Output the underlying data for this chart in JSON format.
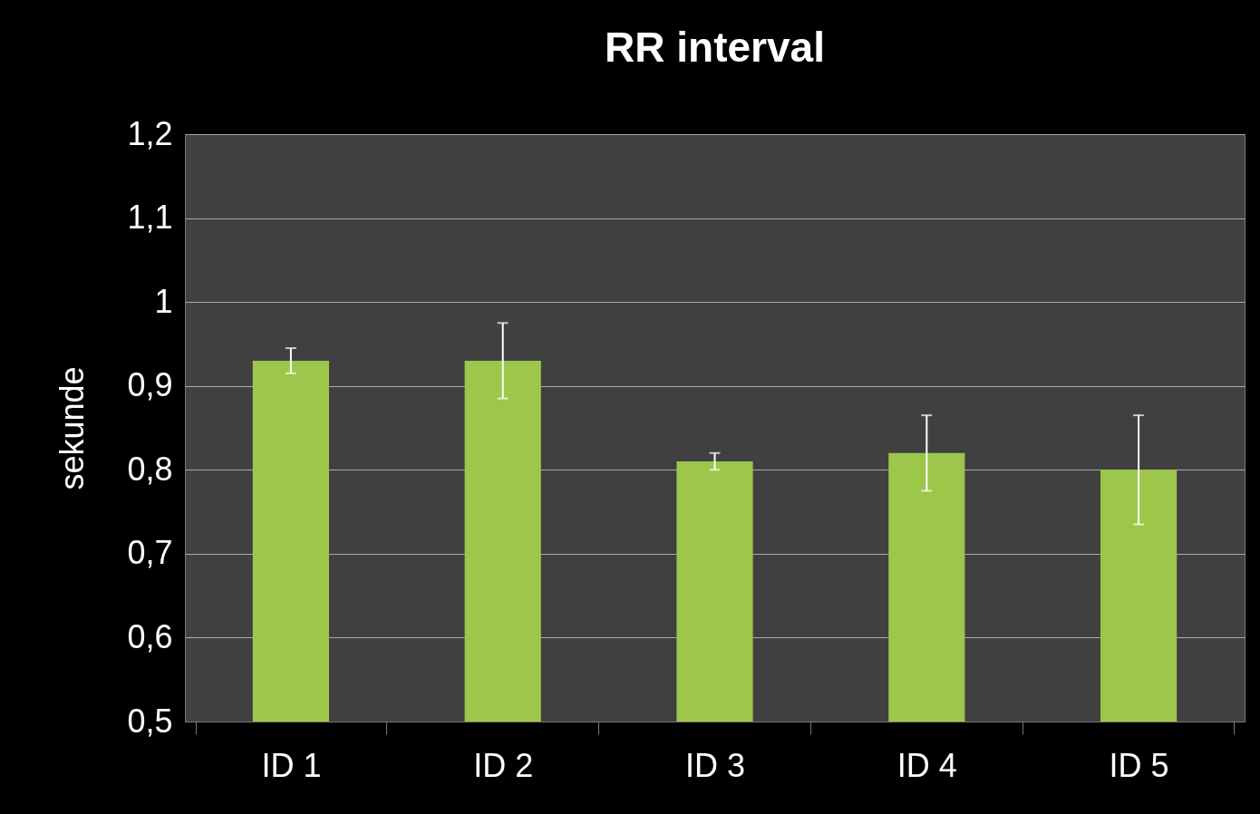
{
  "chart_data": {
    "type": "bar",
    "title": "RR interval",
    "ylabel": "sekunde",
    "categories": [
      "ID 1",
      "ID 2",
      "ID 3",
      "ID 4",
      "ID 5"
    ],
    "values": [
      0.93,
      0.93,
      0.81,
      0.82,
      0.8
    ],
    "errors": [
      0.015,
      0.045,
      0.01,
      0.045,
      0.065
    ],
    "color": "#9cc74a",
    "ylim": [
      0.5,
      1.2
    ],
    "yticks": [
      {
        "value": 0.5,
        "label": "0,5"
      },
      {
        "value": 0.6,
        "label": "0,6"
      },
      {
        "value": 0.7,
        "label": "0,7"
      },
      {
        "value": 0.8,
        "label": "0,8"
      },
      {
        "value": 0.9,
        "label": "0,9"
      },
      1,
      {
        "value": 1.1,
        "label": "1,1"
      },
      {
        "value": 1.2,
        "label": "1,2"
      }
    ],
    "grid": "y"
  }
}
